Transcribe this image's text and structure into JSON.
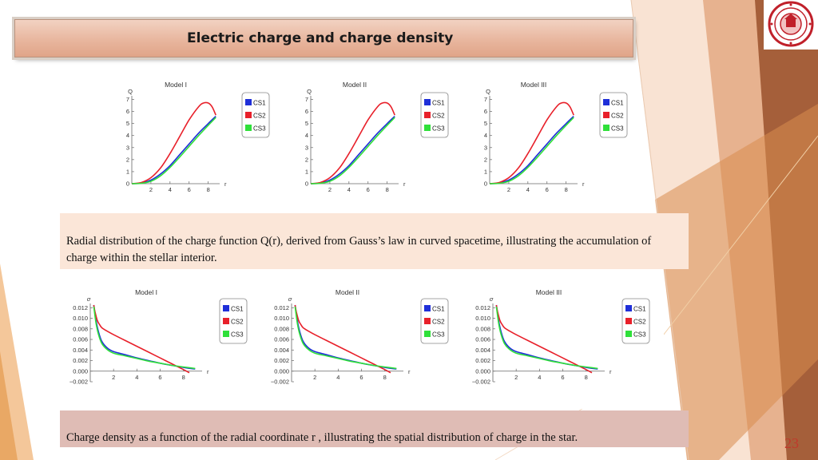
{
  "slide": {
    "title": "Electric charge and charge density",
    "page_number": "23",
    "caption_top": "Radial distribution of the charge function  Q(r), derived from Gauss’s law in curved spacetime, illustrating the accumulation of charge within the stellar interior.",
    "caption_bottom": "Charge density  as a function of the radial coordinate  r , illustrating the spatial distribution of charge in the star."
  },
  "colors": {
    "CS1": "#1f2fd8",
    "CS2": "#e8202a",
    "CS3": "#2fe03a"
  },
  "chart_data": [
    {
      "type": "line",
      "title": "Model I",
      "xlabel": "r",
      "ylabel": "Q",
      "xlim": [
        0,
        9.2
      ],
      "ylim": [
        0,
        7.3
      ],
      "xticks": [
        2,
        4,
        6,
        8
      ],
      "yticks": [
        0,
        1,
        2,
        3,
        4,
        5,
        6,
        7
      ],
      "legend": [
        "CS1",
        "CS2",
        "CS3"
      ],
      "legend_position": "right",
      "series": [
        {
          "name": "CS1",
          "x": [
            0,
            1,
            2,
            3,
            4,
            5,
            6,
            7,
            8,
            8.8
          ],
          "y": [
            0,
            0.05,
            0.3,
            0.8,
            1.5,
            2.4,
            3.3,
            4.2,
            5.0,
            5.6
          ]
        },
        {
          "name": "CS2",
          "x": [
            0,
            1,
            2,
            3,
            4,
            5,
            6,
            7,
            7.5,
            8,
            8.4,
            8.8
          ],
          "y": [
            0,
            0.1,
            0.5,
            1.3,
            2.5,
            3.9,
            5.3,
            6.4,
            6.7,
            6.7,
            6.4,
            5.7
          ]
        },
        {
          "name": "CS3",
          "x": [
            0,
            1,
            2,
            3,
            4,
            5,
            6,
            7,
            8,
            8.8
          ],
          "y": [
            0,
            0.03,
            0.2,
            0.65,
            1.35,
            2.2,
            3.1,
            4.0,
            4.85,
            5.5
          ]
        }
      ]
    },
    {
      "type": "line",
      "title": "Model II",
      "xlabel": "r",
      "ylabel": "Q",
      "xlim": [
        0,
        9.2
      ],
      "ylim": [
        0,
        7.3
      ],
      "xticks": [
        2,
        4,
        6,
        8
      ],
      "yticks": [
        0,
        1,
        2,
        3,
        4,
        5,
        6,
        7
      ],
      "legend": [
        "CS1",
        "CS2",
        "CS3"
      ],
      "legend_position": "right",
      "series": [
        {
          "name": "CS1",
          "x": [
            0,
            1,
            2,
            3,
            4,
            5,
            6,
            7,
            8,
            8.8
          ],
          "y": [
            0,
            0.05,
            0.3,
            0.8,
            1.5,
            2.4,
            3.3,
            4.2,
            5.0,
            5.6
          ]
        },
        {
          "name": "CS2",
          "x": [
            0,
            1,
            2,
            3,
            4,
            5,
            6,
            7,
            7.5,
            8,
            8.4,
            8.8
          ],
          "y": [
            0,
            0.1,
            0.5,
            1.3,
            2.5,
            3.9,
            5.3,
            6.4,
            6.7,
            6.7,
            6.4,
            5.7
          ]
        },
        {
          "name": "CS3",
          "x": [
            0,
            1,
            2,
            3,
            4,
            5,
            6,
            7,
            8,
            8.8
          ],
          "y": [
            0,
            0.03,
            0.2,
            0.65,
            1.35,
            2.2,
            3.1,
            4.0,
            4.85,
            5.5
          ]
        }
      ]
    },
    {
      "type": "line",
      "title": "Model III",
      "xlabel": "r",
      "ylabel": "Q",
      "xlim": [
        0,
        9.2
      ],
      "ylim": [
        0,
        7.3
      ],
      "xticks": [
        2,
        4,
        6,
        8
      ],
      "yticks": [
        0,
        1,
        2,
        3,
        4,
        5,
        6,
        7
      ],
      "legend": [
        "CS1",
        "CS2",
        "CS3"
      ],
      "legend_position": "right",
      "series": [
        {
          "name": "CS1",
          "x": [
            0,
            1,
            2,
            3,
            4,
            5,
            6,
            7,
            8,
            8.8
          ],
          "y": [
            0,
            0.05,
            0.3,
            0.8,
            1.5,
            2.4,
            3.3,
            4.2,
            5.0,
            5.6
          ]
        },
        {
          "name": "CS2",
          "x": [
            0,
            1,
            2,
            3,
            4,
            5,
            6,
            7,
            7.5,
            8,
            8.4,
            8.8
          ],
          "y": [
            0,
            0.1,
            0.5,
            1.3,
            2.5,
            3.9,
            5.3,
            6.4,
            6.7,
            6.7,
            6.4,
            5.7
          ]
        },
        {
          "name": "CS3",
          "x": [
            0,
            1,
            2,
            3,
            4,
            5,
            6,
            7,
            8,
            8.8
          ],
          "y": [
            0,
            0.03,
            0.2,
            0.65,
            1.35,
            2.2,
            3.1,
            4.0,
            4.85,
            5.5
          ]
        }
      ]
    },
    {
      "type": "line",
      "title": "Model I",
      "xlabel": "r",
      "ylabel": "σ",
      "xlim": [
        0,
        9.6
      ],
      "ylim": [
        -0.002,
        0.0128
      ],
      "xticks": [
        2,
        4,
        6,
        8
      ],
      "yticks": [
        -0.002,
        0.0,
        0.002,
        0.004,
        0.006,
        0.008,
        0.01,
        0.012
      ],
      "ytick_labels": [
        "−0.002",
        "0.000",
        "0.002",
        "0.004",
        "0.006",
        "0.008",
        "0.010",
        "0.012"
      ],
      "legend": [
        "CS1",
        "CS2",
        "CS3"
      ],
      "legend_position": "right",
      "series": [
        {
          "name": "CS1",
          "x": [
            0.3,
            0.5,
            0.7,
            1.0,
            1.5,
            2,
            3,
            4,
            5,
            6,
            7,
            8,
            9
          ],
          "y": [
            0.0125,
            0.0095,
            0.0075,
            0.0056,
            0.0043,
            0.0037,
            0.0031,
            0.0025,
            0.002,
            0.0015,
            0.0011,
            0.0007,
            0.0004
          ]
        },
        {
          "name": "CS2",
          "x": [
            0.3,
            0.4,
            0.6,
            0.8,
            1.0,
            1.5,
            2,
            3,
            4,
            5,
            6,
            7,
            8,
            8.5
          ],
          "y": [
            0.0125,
            0.0113,
            0.0096,
            0.0088,
            0.0082,
            0.0075,
            0.0069,
            0.0058,
            0.0047,
            0.0036,
            0.0025,
            0.0014,
            0.0003,
            -0.0003
          ]
        },
        {
          "name": "CS3",
          "x": [
            0.3,
            0.5,
            0.7,
            1.0,
            1.5,
            2,
            3,
            4,
            5,
            6,
            7,
            8,
            9
          ],
          "y": [
            0.0122,
            0.009,
            0.007,
            0.0052,
            0.004,
            0.0034,
            0.0029,
            0.0024,
            0.0019,
            0.0015,
            0.0011,
            0.0008,
            0.0005
          ]
        }
      ]
    },
    {
      "type": "line",
      "title": "Model II",
      "xlabel": "r",
      "ylabel": "σ",
      "xlim": [
        0,
        9.6
      ],
      "ylim": [
        -0.002,
        0.0128
      ],
      "xticks": [
        2,
        4,
        6,
        8
      ],
      "yticks": [
        -0.002,
        0.0,
        0.002,
        0.004,
        0.006,
        0.008,
        0.01,
        0.012
      ],
      "ytick_labels": [
        "−0.002",
        "0.000",
        "0.002",
        "0.004",
        "0.006",
        "0.008",
        "0.010",
        "0.012"
      ],
      "legend": [
        "CS1",
        "CS2",
        "CS3"
      ],
      "legend_position": "right",
      "series": [
        {
          "name": "CS1",
          "x": [
            0.3,
            0.5,
            0.7,
            1.0,
            1.5,
            2,
            3,
            4,
            5,
            6,
            7,
            8,
            9
          ],
          "y": [
            0.0125,
            0.0095,
            0.0075,
            0.0056,
            0.0043,
            0.0037,
            0.0031,
            0.0025,
            0.002,
            0.0015,
            0.0011,
            0.0007,
            0.0004
          ]
        },
        {
          "name": "CS2",
          "x": [
            0.3,
            0.4,
            0.6,
            0.8,
            1.0,
            1.5,
            2,
            3,
            4,
            5,
            6,
            7,
            8,
            8.5
          ],
          "y": [
            0.0125,
            0.0113,
            0.0096,
            0.0088,
            0.0082,
            0.0075,
            0.0069,
            0.0058,
            0.0047,
            0.0036,
            0.0025,
            0.0014,
            0.0003,
            -0.0003
          ]
        },
        {
          "name": "CS3",
          "x": [
            0.3,
            0.5,
            0.7,
            1.0,
            1.5,
            2,
            3,
            4,
            5,
            6,
            7,
            8,
            9
          ],
          "y": [
            0.0122,
            0.009,
            0.007,
            0.0052,
            0.004,
            0.0034,
            0.0029,
            0.0024,
            0.0019,
            0.0015,
            0.0011,
            0.0008,
            0.0005
          ]
        }
      ]
    },
    {
      "type": "line",
      "title": "Model III",
      "xlabel": "r",
      "ylabel": "σ",
      "xlim": [
        0,
        9.6
      ],
      "ylim": [
        -0.002,
        0.0128
      ],
      "xticks": [
        2,
        4,
        6,
        8
      ],
      "yticks": [
        -0.002,
        0.0,
        0.002,
        0.004,
        0.006,
        0.008,
        0.01,
        0.012
      ],
      "ytick_labels": [
        "−0.002",
        "0.000",
        "0.002",
        "0.004",
        "0.006",
        "0.008",
        "0.010",
        "0.012"
      ],
      "legend": [
        "CS1",
        "CS2",
        "CS3"
      ],
      "legend_position": "right",
      "series": [
        {
          "name": "CS1",
          "x": [
            0.3,
            0.5,
            0.7,
            1.0,
            1.5,
            2,
            3,
            4,
            5,
            6,
            7,
            8,
            9
          ],
          "y": [
            0.0125,
            0.0095,
            0.0075,
            0.0056,
            0.0043,
            0.0037,
            0.0031,
            0.0025,
            0.002,
            0.0015,
            0.0011,
            0.0007,
            0.0004
          ]
        },
        {
          "name": "CS2",
          "x": [
            0.3,
            0.4,
            0.6,
            0.8,
            1.0,
            1.5,
            2,
            3,
            4,
            5,
            6,
            7,
            8,
            8.5
          ],
          "y": [
            0.0125,
            0.0113,
            0.0096,
            0.0088,
            0.0082,
            0.0075,
            0.0069,
            0.0058,
            0.0047,
            0.0036,
            0.0025,
            0.0014,
            0.0003,
            -0.0003
          ]
        },
        {
          "name": "CS3",
          "x": [
            0.3,
            0.5,
            0.7,
            1.0,
            1.5,
            2,
            3,
            4,
            5,
            6,
            7,
            8,
            9
          ],
          "y": [
            0.0122,
            0.009,
            0.007,
            0.0052,
            0.004,
            0.0034,
            0.0029,
            0.0024,
            0.0019,
            0.0015,
            0.0011,
            0.0008,
            0.0005
          ]
        }
      ]
    }
  ]
}
